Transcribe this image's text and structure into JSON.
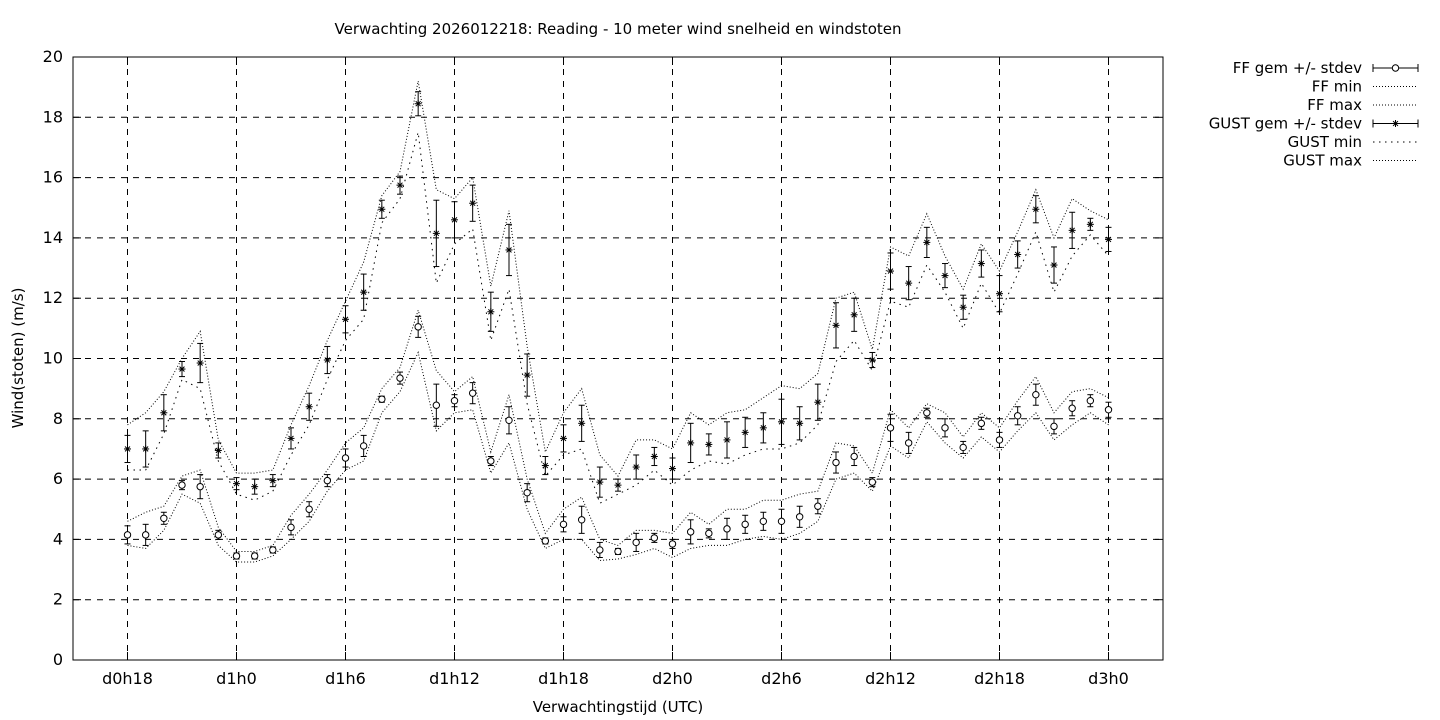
{
  "chart_data": {
    "type": "line",
    "title": "Verwachting 2026012218: Reading - 10 meter wind snelheid en windstoten",
    "xlabel": "Verwachtingstijd (UTC)",
    "ylabel": "Wind(stoten) (m/s)",
    "ylim": [
      0,
      20
    ],
    "y_ticks": [
      0,
      2,
      4,
      6,
      8,
      10,
      12,
      14,
      16,
      18,
      20
    ],
    "x_unit": "hours after d0h0",
    "xlim": [
      15,
      75
    ],
    "x_tick_labels": [
      {
        "x": 18,
        "label": "d0h18"
      },
      {
        "x": 24,
        "label": "d1h0"
      },
      {
        "x": 30,
        "label": "d1h6"
      },
      {
        "x": 36,
        "label": "d1h12"
      },
      {
        "x": 42,
        "label": "d1h18"
      },
      {
        "x": 48,
        "label": "d2h0"
      },
      {
        "x": 54,
        "label": "d2h6"
      },
      {
        "x": 60,
        "label": "d2h12"
      },
      {
        "x": 66,
        "label": "d2h18"
      },
      {
        "x": 72,
        "label": "d3h0"
      }
    ],
    "grid": true,
    "legend_position": "outside-top-right",
    "x": [
      18,
      19,
      20,
      21,
      22,
      23,
      24,
      25,
      26,
      27,
      28,
      29,
      30,
      31,
      32,
      33,
      34,
      35,
      36,
      37,
      38,
      39,
      40,
      41,
      42,
      43,
      44,
      45,
      46,
      47,
      48,
      49,
      50,
      51,
      52,
      53,
      54,
      55,
      56,
      57,
      58,
      59,
      60,
      61,
      62,
      63,
      64,
      65,
      66,
      67,
      68,
      69,
      70,
      71,
      72
    ],
    "series": [
      {
        "name": "FF gem +/- stdev",
        "style": "errorbar-circle",
        "mean": [
          4.15,
          4.15,
          4.7,
          5.8,
          5.75,
          4.15,
          3.45,
          3.45,
          3.65,
          4.4,
          5.0,
          5.95,
          6.7,
          7.1,
          8.65,
          9.35,
          11.05,
          8.45,
          8.6,
          8.85,
          6.6,
          7.95,
          5.55,
          3.95,
          4.5,
          4.65,
          3.65,
          3.6,
          3.9,
          4.05,
          3.85,
          4.25,
          4.2,
          4.35,
          4.5,
          4.6,
          4.6,
          4.75,
          5.1,
          6.55,
          6.75,
          5.9,
          7.7,
          7.2,
          8.2,
          7.7,
          7.05,
          7.85,
          7.3,
          8.1,
          8.8,
          7.75,
          8.35,
          8.6,
          8.3
        ],
        "stdev": [
          0.3,
          0.35,
          0.2,
          0.15,
          0.4,
          0.15,
          0.1,
          0.1,
          0.1,
          0.25,
          0.25,
          0.2,
          0.3,
          0.35,
          0.1,
          0.2,
          0.35,
          0.7,
          0.2,
          0.35,
          0.15,
          0.45,
          0.3,
          0.1,
          0.25,
          0.45,
          0.25,
          0.1,
          0.3,
          0.15,
          0.15,
          0.4,
          0.15,
          0.35,
          0.3,
          0.3,
          0.4,
          0.35,
          0.25,
          0.35,
          0.3,
          0.15,
          0.45,
          0.35,
          0.15,
          0.3,
          0.2,
          0.2,
          0.25,
          0.3,
          0.35,
          0.25,
          0.25,
          0.2,
          0.25
        ],
        "color": "#000000"
      },
      {
        "name": "FF min",
        "style": "dotted",
        "values": [
          3.8,
          3.7,
          4.3,
          5.5,
          5.2,
          3.8,
          3.25,
          3.25,
          3.45,
          4.0,
          4.6,
          5.6,
          6.3,
          6.6,
          8.2,
          8.9,
          10.2,
          7.6,
          8.2,
          8.3,
          6.2,
          7.2,
          5.0,
          3.7,
          4.0,
          4.0,
          3.3,
          3.35,
          3.5,
          3.7,
          3.4,
          3.7,
          3.8,
          3.8,
          4.0,
          4.1,
          4.0,
          4.2,
          4.6,
          6.0,
          6.2,
          5.6,
          7.1,
          6.7,
          7.9,
          7.2,
          6.7,
          7.4,
          6.9,
          7.6,
          8.2,
          7.3,
          7.8,
          8.2,
          7.8
        ]
      },
      {
        "name": "FF max",
        "style": "dotted",
        "values": [
          4.6,
          4.9,
          5.1,
          6.1,
          6.3,
          4.4,
          3.6,
          3.6,
          3.8,
          4.8,
          5.5,
          6.3,
          7.2,
          7.7,
          9.0,
          9.7,
          11.6,
          9.6,
          8.9,
          9.4,
          6.9,
          8.8,
          6.0,
          4.2,
          5.0,
          5.4,
          4.0,
          3.8,
          4.3,
          4.3,
          4.2,
          4.9,
          4.5,
          5.0,
          5.0,
          5.3,
          5.3,
          5.5,
          5.6,
          7.2,
          7.1,
          6.2,
          8.3,
          7.7,
          8.5,
          8.2,
          7.4,
          8.2,
          7.7,
          8.6,
          9.4,
          8.2,
          8.9,
          9.0,
          8.7
        ]
      },
      {
        "name": "GUST gem +/- stdev",
        "style": "errorbar-star",
        "mean": [
          7.0,
          7.0,
          8.2,
          9.65,
          9.85,
          6.95,
          5.85,
          5.75,
          5.95,
          7.35,
          8.4,
          9.95,
          11.3,
          12.2,
          14.95,
          15.75,
          18.45,
          14.15,
          14.6,
          15.15,
          11.55,
          13.6,
          9.45,
          6.45,
          7.35,
          7.85,
          5.9,
          5.8,
          6.4,
          6.75,
          6.35,
          7.2,
          7.15,
          7.3,
          7.55,
          7.7,
          7.9,
          7.85,
          8.55,
          11.1,
          11.45,
          9.95,
          12.9,
          12.5,
          13.85,
          12.75,
          11.7,
          13.15,
          12.15,
          13.45,
          14.95,
          13.1,
          14.25,
          14.45,
          13.95
        ],
        "stdev": [
          0.45,
          0.6,
          0.6,
          0.25,
          0.65,
          0.25,
          0.2,
          0.25,
          0.2,
          0.35,
          0.45,
          0.45,
          0.45,
          0.6,
          0.3,
          0.3,
          0.4,
          1.1,
          0.6,
          0.6,
          0.65,
          0.85,
          0.7,
          0.3,
          0.45,
          0.6,
          0.5,
          0.2,
          0.4,
          0.3,
          0.35,
          0.65,
          0.35,
          0.6,
          0.5,
          0.5,
          0.75,
          0.55,
          0.6,
          0.75,
          0.55,
          0.25,
          0.6,
          0.55,
          0.5,
          0.4,
          0.4,
          0.45,
          0.6,
          0.45,
          0.45,
          0.6,
          0.6,
          0.2,
          0.4
        ],
        "color": "#000000"
      },
      {
        "name": "GUST min",
        "style": "dotted-sparse",
        "values": [
          6.3,
          6.3,
          7.5,
          9.3,
          9.0,
          6.6,
          5.5,
          5.3,
          5.6,
          6.8,
          7.8,
          9.3,
          10.6,
          11.3,
          14.5,
          15.3,
          17.5,
          12.5,
          13.8,
          14.3,
          10.6,
          12.3,
          8.5,
          6.1,
          6.8,
          7.0,
          5.2,
          5.5,
          5.8,
          6.3,
          5.8,
          6.3,
          6.6,
          6.5,
          6.8,
          7.0,
          7.0,
          7.2,
          7.8,
          9.9,
          10.6,
          9.6,
          11.9,
          11.7,
          13.1,
          12.2,
          11.0,
          12.5,
          11.5,
          12.8,
          14.2,
          12.2,
          13.4,
          14.1,
          13.4
        ]
      },
      {
        "name": "GUST max",
        "style": "dotted",
        "values": [
          7.8,
          8.2,
          8.9,
          10.0,
          10.9,
          7.3,
          6.2,
          6.2,
          6.3,
          7.8,
          9.1,
          10.6,
          11.9,
          13.2,
          15.4,
          16.2,
          19.2,
          15.6,
          15.3,
          16.0,
          12.4,
          14.9,
          10.4,
          6.9,
          8.2,
          9.0,
          6.8,
          6.1,
          7.3,
          7.3,
          7.0,
          8.2,
          7.8,
          8.2,
          8.3,
          8.7,
          9.1,
          9.0,
          9.5,
          12.0,
          12.2,
          10.3,
          13.7,
          13.4,
          14.8,
          13.4,
          12.3,
          13.8,
          12.9,
          14.2,
          15.6,
          14.0,
          15.3,
          14.9,
          14.6
        ]
      }
    ]
  }
}
